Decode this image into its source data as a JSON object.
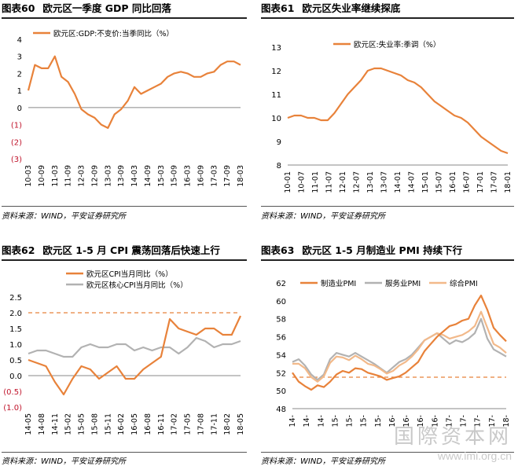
{
  "colors": {
    "orange": "#E8823A",
    "gray": "#B2B2B2",
    "peach": "#F2B98A",
    "neg_tick": "#C0142B"
  },
  "charts": [
    {
      "number": "图表60",
      "title": "欧元区一季度 GDP 同比回落",
      "source": "资料来源：WIND，平安证券研究所",
      "chart_data": {
        "type": "line",
        "legend": "top-left",
        "series": [
          {
            "name": "欧元区:GDP:不变价:当季同比（%）",
            "color": "#E8823A",
            "x": [
              "10-03",
              "10-06",
              "10-09",
              "10-12",
              "11-03",
              "11-06",
              "11-09",
              "11-12",
              "12-03",
              "12-06",
              "12-09",
              "12-12",
              "13-03",
              "13-06",
              "13-09",
              "13-12",
              "14-03",
              "14-06",
              "14-09",
              "14-12",
              "15-03",
              "15-06",
              "15-09",
              "15-12",
              "16-03",
              "16-06",
              "16-09",
              "16-12",
              "17-03",
              "17-06",
              "17-09",
              "17-12",
              "18-03"
            ],
            "values": [
              1.0,
              2.5,
              2.3,
              2.3,
              3.0,
              1.8,
              1.5,
              0.8,
              -0.1,
              -0.4,
              -0.6,
              -1.0,
              -1.2,
              -0.4,
              -0.1,
              0.4,
              1.2,
              0.8,
              1.0,
              1.2,
              1.4,
              1.8,
              2.0,
              2.1,
              2.0,
              1.8,
              1.8,
              2.0,
              2.1,
              2.5,
              2.7,
              2.7,
              2.5
            ]
          }
        ],
        "x_ticks": [
          "10-03",
          "10-09",
          "11-03",
          "11-09",
          "12-03",
          "12-09",
          "13-03",
          "13-09",
          "14-03",
          "14-09",
          "15-03",
          "15-09",
          "16-03",
          "16-09",
          "17-03",
          "17-09",
          "18-03"
        ],
        "ylim": [
          -3,
          4
        ],
        "y_ticks": [
          "4",
          "3",
          "2",
          "1",
          "0",
          "(1)",
          "(2)",
          "(3)"
        ]
      }
    },
    {
      "number": "图表61",
      "title": "欧元区失业率继续探底",
      "source": "资料来源：WIND，平安证券研究所",
      "chart_data": {
        "type": "line",
        "legend": "top-center",
        "series": [
          {
            "name": "欧元区:失业率:季调（%）",
            "color": "#E8823A",
            "x": [
              "10-01",
              "10-04",
              "10-07",
              "10-10",
              "11-01",
              "11-04",
              "11-07",
              "11-10",
              "12-01",
              "12-04",
              "12-07",
              "12-10",
              "13-01",
              "13-04",
              "13-07",
              "13-10",
              "14-01",
              "14-04",
              "14-07",
              "14-10",
              "15-01",
              "15-04",
              "15-07",
              "15-10",
              "16-01",
              "16-04",
              "16-07",
              "16-10",
              "17-01",
              "17-04",
              "17-07",
              "17-10",
              "18-01",
              "18-04"
            ],
            "values": [
              10.0,
              10.1,
              10.1,
              10.0,
              10.0,
              9.9,
              9.9,
              10.2,
              10.6,
              11.0,
              11.3,
              11.6,
              12.0,
              12.1,
              12.1,
              12.0,
              11.9,
              11.8,
              11.6,
              11.5,
              11.3,
              11.0,
              10.7,
              10.5,
              10.3,
              10.1,
              10.0,
              9.8,
              9.5,
              9.2,
              9.0,
              8.8,
              8.6,
              8.5
            ]
          }
        ],
        "x_ticks": [
          "10-01",
          "10-07",
          "11-01",
          "11-07",
          "12-01",
          "12-07",
          "13-01",
          "13-07",
          "14-01",
          "14-07",
          "15-01",
          "15-07",
          "16-01",
          "16-07",
          "17-01",
          "17-07",
          "18-01"
        ],
        "ylim": [
          8,
          13
        ],
        "y_ticks": [
          "13",
          "12",
          "11",
          "10",
          "9",
          "8"
        ]
      }
    },
    {
      "number": "图表62",
      "title": "欧元区 1-5 月 CPI 震荡回落后快速上行",
      "source": "资料来源：WIND，平安证券研究所",
      "chart_data": {
        "type": "line",
        "legend": "top-center",
        "reference_line": 2.0,
        "series": [
          {
            "name": "欧元区CPI当月同比（%）",
            "color": "#E8823A",
            "x": [
              "14-05",
              "14-07",
              "14-09",
              "14-11",
              "15-01",
              "15-03",
              "15-05",
              "15-07",
              "15-09",
              "15-11",
              "16-01",
              "16-03",
              "16-05",
              "16-07",
              "16-09",
              "16-11",
              "17-01",
              "17-03",
              "17-05",
              "17-07",
              "17-09",
              "17-11",
              "18-01",
              "18-03",
              "18-05"
            ],
            "values": [
              0.5,
              0.4,
              0.3,
              -0.2,
              -0.6,
              -0.1,
              0.3,
              0.2,
              -0.1,
              0.1,
              0.3,
              -0.1,
              -0.1,
              0.2,
              0.4,
              0.6,
              1.8,
              1.5,
              1.4,
              1.3,
              1.5,
              1.5,
              1.3,
              1.3,
              1.9
            ]
          },
          {
            "name": "欧元区核心CPI当月同比（%）",
            "color": "#B2B2B2",
            "x": [
              "14-05",
              "14-07",
              "14-09",
              "14-11",
              "15-01",
              "15-03",
              "15-05",
              "15-07",
              "15-09",
              "15-11",
              "16-01",
              "16-03",
              "16-05",
              "16-07",
              "16-09",
              "16-11",
              "17-01",
              "17-03",
              "17-05",
              "17-07",
              "17-09",
              "17-11",
              "18-01",
              "18-03",
              "18-05"
            ],
            "values": [
              0.7,
              0.8,
              0.8,
              0.7,
              0.6,
              0.6,
              0.9,
              1.0,
              0.9,
              0.9,
              1.0,
              1.0,
              0.8,
              0.9,
              0.8,
              0.9,
              0.9,
              0.7,
              0.9,
              1.2,
              1.1,
              0.9,
              1.0,
              1.0,
              1.1
            ]
          }
        ],
        "x_ticks": [
          "14-05",
          "14-08",
          "14-11",
          "15-02",
          "15-05",
          "15-08",
          "15-11",
          "16-02",
          "16-05",
          "16-08",
          "16-11",
          "17-02",
          "17-05",
          "17-08",
          "17-11",
          "18-02",
          "18-05"
        ],
        "ylim": [
          -1.0,
          2.5
        ],
        "y_ticks": [
          "2.5",
          "2.0",
          "1.5",
          "1.0",
          "0.5",
          "0.0",
          "(0.5)",
          "(1.0)"
        ]
      }
    },
    {
      "number": "图表63",
      "title": "欧元区 1-5 月制造业 PMI 持续下行",
      "source": "资料来源：WIND，平安证券研究所",
      "chart_data": {
        "type": "line",
        "legend": "top",
        "reference_line": 51.5,
        "series": [
          {
            "name": "制造业PMI",
            "color": "#E8823A",
            "values": [
              52.0,
              51.0,
              50.5,
              50.1,
              50.6,
              50.4,
              51.0,
              51.8,
              52.2,
              52.0,
              52.5,
              52.4,
              52.0,
              51.8,
              51.6,
              51.2,
              51.4,
              51.6,
              52.0,
              52.6,
              53.2,
              54.4,
              55.2,
              56.0,
              56.6,
              57.2,
              57.4,
              57.8,
              58.0,
              59.5,
              60.6,
              59.0,
              57.0,
              56.2,
              55.5
            ]
          },
          {
            "name": "服务业PMI",
            "color": "#B2B2B2",
            "values": [
              53.2,
              53.5,
              52.8,
              51.8,
              51.2,
              51.8,
              53.5,
              54.2,
              54.0,
              53.8,
              54.2,
              53.8,
              53.4,
              53.0,
              52.5,
              52.0,
              52.6,
              53.2,
              53.5,
              54.0,
              54.8,
              55.6,
              56.0,
              56.4,
              55.8,
              55.2,
              55.6,
              55.4,
              55.8,
              56.4,
              58.0,
              55.8,
              54.6,
              54.2,
              53.8
            ]
          },
          {
            "name": "综合PMI",
            "color": "#F2B98A",
            "values": [
              53.0,
              53.0,
              52.5,
              51.5,
              51.0,
              51.6,
              53.1,
              53.8,
              53.7,
              53.4,
              53.9,
              53.5,
              53.0,
              52.8,
              52.4,
              51.9,
              52.2,
              52.8,
              53.2,
              53.8,
              54.6,
              55.6,
              56.0,
              56.4,
              56.2,
              55.8,
              56.0,
              56.2,
              56.6,
              57.2,
              58.8,
              57.0,
              55.2,
              54.8,
              54.2
            ]
          }
        ],
        "x_ticks": [
          "14-",
          "14-",
          "14-",
          "15-",
          "15-",
          "15-",
          "15-",
          "16-",
          "16-",
          "16-",
          "16-",
          "17-",
          "17-",
          "17-",
          "17-",
          "18-"
        ],
        "ylim": [
          48,
          62
        ],
        "y_ticks": [
          "62",
          "60",
          "58",
          "56",
          "54",
          "52",
          "50",
          "48"
        ]
      }
    }
  ],
  "watermark": {
    "cn": "国際资本网",
    "url": "www.imi.org.cn"
  }
}
